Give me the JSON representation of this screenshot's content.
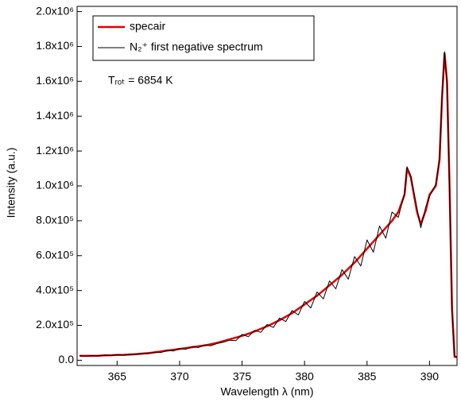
{
  "chart_data": {
    "type": "line",
    "x_label": "Wavelength λ (nm)",
    "y_label": "Intensity (a.u.)",
    "annotation": "Tᵣₒₜ = 6854 K",
    "legend": "upper left",
    "xlim": [
      361.8,
      392.2
    ],
    "ylim": [
      -30000,
      2030000
    ],
    "xticks": [
      365,
      370,
      375,
      380,
      385,
      390
    ],
    "yticks": [
      {
        "value": 0,
        "label": "0.0"
      },
      {
        "value": 200000,
        "label": "2.0x10⁵"
      },
      {
        "value": 400000,
        "label": "4.0x10⁵"
      },
      {
        "value": 600000,
        "label": "6.0x10⁵"
      },
      {
        "value": 800000,
        "label": "8.0x10⁵"
      },
      {
        "value": 1000000,
        "label": "1.0x10⁶"
      },
      {
        "value": 1200000,
        "label": "1.2x10⁶"
      },
      {
        "value": 1400000,
        "label": "1.4x10⁶"
      },
      {
        "value": 1600000,
        "label": "1.6x10⁶"
      },
      {
        "value": 1800000,
        "label": "1.8x10⁶"
      },
      {
        "value": 2000000,
        "label": "2.0x10⁶"
      }
    ],
    "x": [
      362,
      362.5,
      363,
      363.5,
      364,
      364.5,
      365,
      365.5,
      366,
      366.5,
      367,
      367.5,
      368,
      368.5,
      369,
      369.5,
      370,
      370.5,
      371,
      371.5,
      372,
      372.5,
      373,
      373.5,
      374,
      374.5,
      375,
      375.5,
      376,
      376.5,
      377,
      377.5,
      378,
      378.5,
      379,
      379.5,
      380,
      380.5,
      381,
      381.5,
      382,
      382.5,
      383,
      383.5,
      384,
      384.5,
      385,
      385.5,
      386,
      386.5,
      387,
      387.5,
      388,
      388.2,
      388.5,
      389,
      389.3,
      389.7,
      390,
      390.5,
      390.8,
      391,
      391.2,
      391.4,
      391.6,
      391.8,
      392,
      392.5
    ],
    "series": [
      {
        "name": "specair",
        "color": "#e00000",
        "width": 2.5,
        "values": [
          25000,
          25000,
          25000,
          26000,
          28000,
          29000,
          30000,
          31000,
          33000,
          35000,
          38000,
          41000,
          45000,
          50000,
          55000,
          60000,
          65000,
          70000,
          75000,
          80000,
          85000,
          92000,
          100000,
          110000,
          120000,
          130000,
          140000,
          152000,
          165000,
          180000,
          195000,
          212000,
          230000,
          250000,
          270000,
          295000,
          320000,
          345000,
          370000,
          400000,
          430000,
          460000,
          490000,
          525000,
          560000,
          600000,
          640000,
          680000,
          720000,
          760000,
          800000,
          850000,
          950000,
          1100000,
          1050000,
          850000,
          780000,
          860000,
          950000,
          1000000,
          1150000,
          1500000,
          1760000,
          1600000,
          1000000,
          300000,
          20000,
          10000
        ]
      },
      {
        "name": "N₂⁺ first negative spectrum",
        "color": "#000000",
        "width": 1,
        "values": [
          26000,
          24000,
          27000,
          25000,
          29000,
          27000,
          32000,
          29000,
          34000,
          33000,
          40000,
          37000,
          47000,
          44000,
          57000,
          53000,
          68000,
          63000,
          78000,
          73000,
          88000,
          83000,
          96000,
          104000,
          115000,
          112000,
          148000,
          135000,
          172000,
          160000,
          205000,
          188000,
          242000,
          222000,
          285000,
          260000,
          338000,
          300000,
          392000,
          352000,
          455000,
          410000,
          520000,
          465000,
          595000,
          540000,
          690000,
          620000,
          770000,
          700000,
          850000,
          820000,
          960000,
          1110000,
          1060000,
          870000,
          760000,
          880000,
          940000,
          1010000,
          1160000,
          1520000,
          1770000,
          1580000,
          980000,
          280000,
          25000,
          10000
        ]
      }
    ]
  }
}
